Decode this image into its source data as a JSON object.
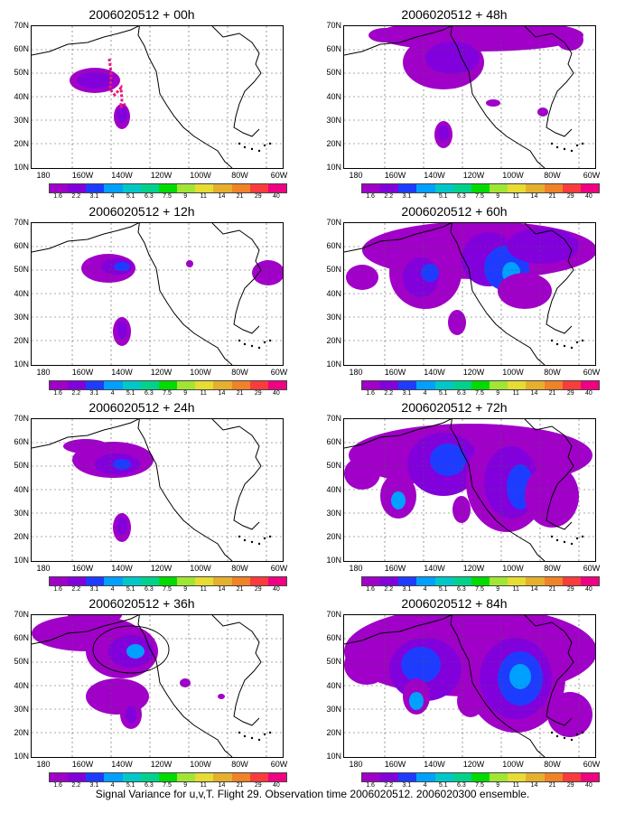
{
  "caption": "Signal Variance for u,v,T. Flight 29. Observation time 2006020512. 2006020300 ensemble.",
  "y_axis_labels": [
    "70N",
    "60N",
    "50N",
    "40N",
    "30N",
    "20N",
    "10N"
  ],
  "x_axis_labels": [
    "180",
    "160W",
    "140W",
    "120W",
    "100W",
    "80W",
    "60W"
  ],
  "colorbar": {
    "labels": [
      "1.6",
      "2.2",
      "3.1",
      "4",
      "5.1",
      "6.3",
      "7.5",
      "9",
      "11",
      "14",
      "21",
      "29",
      "40"
    ],
    "colors": [
      "#a000c8",
      "#8200dc",
      "#1e3cff",
      "#00a0ff",
      "#00c8c8",
      "#00d28c",
      "#00dc00",
      "#a0e632",
      "#e6dc32",
      "#e6af2d",
      "#f08228",
      "#fa3c3c",
      "#f00082"
    ]
  },
  "panels": [
    {
      "title": "2006020512 + 00h"
    },
    {
      "title": "2006020512 + 48h"
    },
    {
      "title": "2006020512 + 12h"
    },
    {
      "title": "2006020512 + 60h"
    },
    {
      "title": "2006020512 + 24h"
    },
    {
      "title": "2006020512 + 72h"
    },
    {
      "title": "2006020512 + 36h"
    },
    {
      "title": "2006020512 + 84h"
    }
  ],
  "flight_track_color": "#e6197d"
}
